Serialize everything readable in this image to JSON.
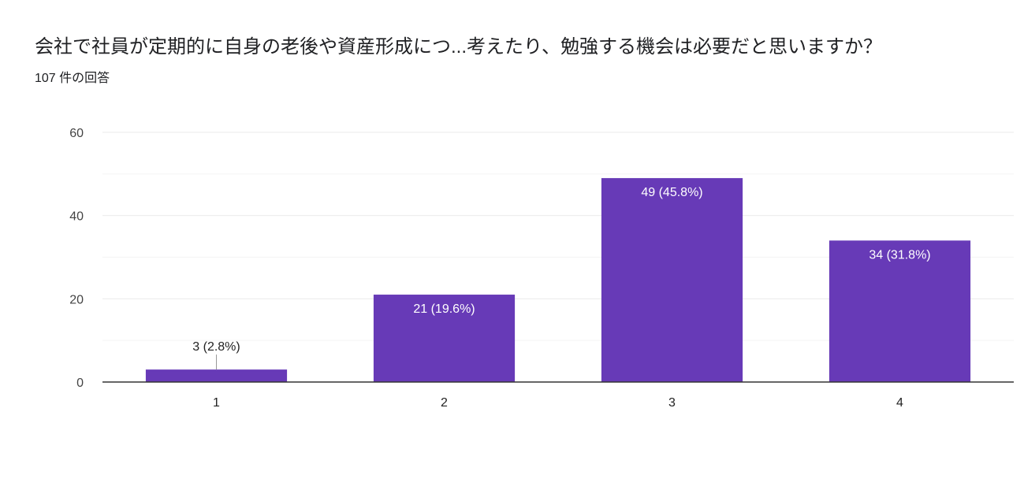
{
  "header": {
    "title": "会社で社員が定期的に自身の老後や資産形成につ...考えたり、勉強する機会は必要だと思いますか？",
    "response_count": "107 件の回答"
  },
  "colors": {
    "bar": "#673ab7",
    "gridline": "#ebebeb",
    "baseline": "#333333",
    "label_inside": "#ffffff",
    "label_outside": "#222222"
  },
  "chart_data": {
    "type": "bar",
    "categories": [
      "1",
      "2",
      "3",
      "4"
    ],
    "values": [
      3,
      21,
      49,
      34
    ],
    "data_labels": [
      "3 (2.8%)",
      "21 (19.6%)",
      "49 (45.8%)",
      "34 (31.8%)"
    ],
    "ylim": [
      0,
      60
    ],
    "y_ticks": [
      0,
      20,
      40,
      60
    ],
    "minor_gridlines": [
      10,
      30,
      50
    ],
    "grid": true,
    "legend": "none"
  }
}
